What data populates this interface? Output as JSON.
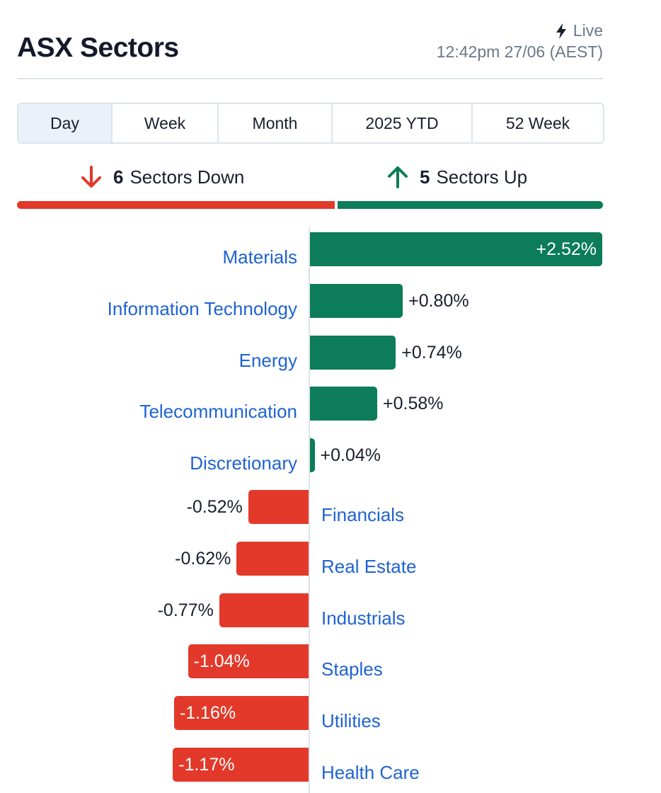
{
  "header": {
    "title": "ASX Sectors",
    "live_label": "Live",
    "timestamp": "12:42pm 27/06 (AEST)"
  },
  "tabs": [
    {
      "label": "Day",
      "active": true
    },
    {
      "label": "Week",
      "active": false
    },
    {
      "label": "Month",
      "active": false
    },
    {
      "label": "2025 YTD",
      "active": false
    },
    {
      "label": "52 Week",
      "active": false
    }
  ],
  "summary": {
    "down_count": "6",
    "down_label": "Sectors Down",
    "up_count": "5",
    "up_label": "Sectors Up",
    "down_color": "#e3392a",
    "up_color": "#0c7c59"
  },
  "chart_data": {
    "type": "bar",
    "orientation": "horizontal",
    "categories": [
      "Materials",
      "Information Technology",
      "Energy",
      "Telecommunication",
      "Discretionary",
      "Financials",
      "Real Estate",
      "Industrials",
      "Staples",
      "Utilities",
      "Health Care"
    ],
    "values": [
      2.52,
      0.8,
      0.74,
      0.58,
      0.04,
      -0.52,
      -0.62,
      -0.77,
      -1.04,
      -1.16,
      -1.17
    ],
    "value_labels": [
      "+2.52%",
      "+0.80%",
      "+0.74%",
      "+0.58%",
      "+0.04%",
      "-0.52%",
      "-0.62%",
      "-0.77%",
      "-1.04%",
      "-1.16%",
      "-1.17%"
    ],
    "positive_color": "#0c7c59",
    "negative_color": "#e3392a"
  }
}
